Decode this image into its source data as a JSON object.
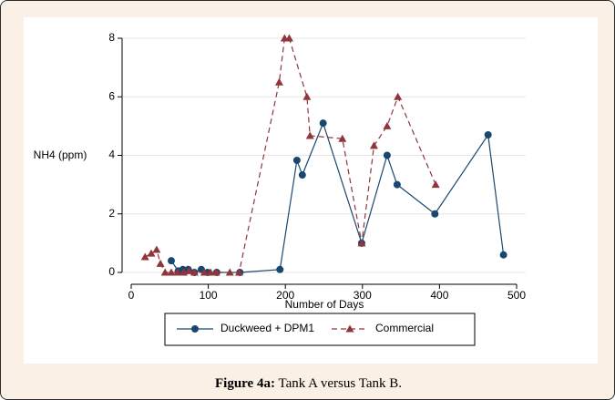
{
  "chart_data": {
    "type": "line",
    "xlabel": "Number of Days",
    "ylabel": "NH4 (ppm)",
    "xlim": [
      0,
      500
    ],
    "xticks": [
      0,
      100,
      200,
      300,
      400,
      500
    ],
    "ylim": [
      0,
      8
    ],
    "yticks": [
      0,
      2,
      4,
      6,
      8
    ],
    "grid": true,
    "series": [
      {
        "name": "Duckweed + DPM1",
        "color": "#1a476f",
        "marker": "circle",
        "dash": false,
        "x": [
          52,
          61,
          67,
          74,
          82,
          91,
          99,
          111,
          141,
          193,
          215,
          222,
          249,
          299,
          332,
          345,
          394,
          463,
          483
        ],
        "values": [
          0.4,
          0.05,
          0.1,
          0.1,
          0,
          0.1,
          0,
          0,
          0,
          0.1,
          3.83,
          3.33,
          5.1,
          1.0,
          4.0,
          3.0,
          2.0,
          4.7,
          0.6
        ]
      },
      {
        "name": "Commercial",
        "color": "#90353b",
        "marker": "triangle",
        "dash": true,
        "x": [
          18,
          26,
          33,
          38,
          44,
          52,
          60,
          68,
          75,
          82,
          95,
          103,
          110,
          128,
          140,
          192,
          199,
          205,
          228,
          232,
          274,
          299,
          315,
          332,
          346,
          395
        ],
        "values": [
          0.53,
          0.65,
          0.78,
          0.3,
          0,
          0,
          0,
          0,
          0.05,
          0,
          0,
          0,
          0,
          0,
          0,
          6.5,
          8,
          8,
          6,
          4.67,
          4.57,
          1.0,
          4.33,
          5.0,
          6.0,
          3.0
        ]
      }
    ]
  },
  "caption": {
    "label": "Figure 4a:",
    "text": "Tank A versus Tank B."
  }
}
